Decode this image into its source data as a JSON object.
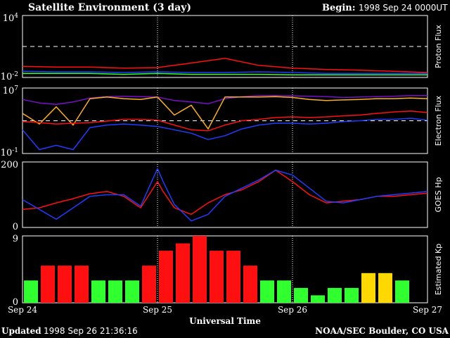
{
  "header": {
    "title": "Satellite Environment (3 day)",
    "begin_label": "Begin:",
    "begin_value": "1998 Sep 24 0000UT"
  },
  "footer": {
    "updated_label": "Updated",
    "updated_value": "1998 Sep 26 21:36:16",
    "source": "NOAA/SEC Boulder, CO USA"
  },
  "colors": {
    "background": "#000000",
    "red": "#ff1010",
    "blue": "#1f3dff",
    "green": "#30ff30",
    "orange": "#ffb020",
    "purple": "#7a10c8",
    "kp_green": "#30ff30",
    "kp_red": "#ff1010",
    "kp_yellow": "#ffd800"
  },
  "chart_data": [
    {
      "id": "proton",
      "type": "line",
      "ylabel": "Proton Flux",
      "yscale": "log",
      "ylim": [
        0.01,
        10000
      ],
      "ytick_labels": {
        "top": "10",
        "top_exp": "4",
        "bottom": "10",
        "bottom_exp": "-2"
      },
      "threshold": 10,
      "x": [
        0,
        6,
        12,
        18,
        24,
        30,
        36,
        42,
        48,
        54,
        60,
        66,
        72
      ],
      "series": [
        {
          "color": "red",
          "values": [
            0.12,
            0.1,
            0.1,
            0.08,
            0.09,
            0.25,
            0.7,
            0.15,
            0.08,
            0.06,
            0.05,
            0.04,
            0.03
          ]
        },
        {
          "color": "blue",
          "values": [
            0.04,
            0.035,
            0.035,
            0.03,
            0.035,
            0.03,
            0.03,
            0.035,
            0.03,
            0.025,
            0.025,
            0.025,
            0.025
          ]
        },
        {
          "color": "green",
          "values": [
            0.025,
            0.025,
            0.025,
            0.02,
            0.025,
            0.02,
            0.02,
            0.02,
            0.018,
            0.018,
            0.018,
            0.018,
            0.018
          ]
        }
      ]
    },
    {
      "id": "electron",
      "type": "line",
      "ylabel": "Electron Flux",
      "yscale": "log",
      "ylim": [
        0.1,
        10000000
      ],
      "ytick_labels": {
        "top": "10",
        "top_exp": "7",
        "bottom": "10",
        "bottom_exp": "-1"
      },
      "threshold": 1000,
      "x": [
        0,
        3,
        6,
        9,
        12,
        15,
        18,
        21,
        24,
        27,
        30,
        33,
        36,
        39,
        42,
        45,
        48,
        51,
        54,
        57,
        60,
        63,
        66,
        69,
        72
      ],
      "series": [
        {
          "color": "purple",
          "values": [
            400000,
            150000,
            100000,
            200000,
            600000,
            900000,
            1000000,
            900000,
            800000,
            300000,
            200000,
            120000,
            500000,
            900000,
            1200000,
            1200000,
            1100000,
            1000000,
            900000,
            700000,
            800000,
            900000,
            1000000,
            1200000,
            1200000
          ]
        },
        {
          "color": "orange",
          "values": [
            8000,
            400,
            50000,
            300,
            500000,
            800000,
            500000,
            400000,
            800000,
            5000,
            80000,
            100,
            800000,
            800000,
            800000,
            900000,
            700000,
            400000,
            300000,
            350000,
            400000,
            500000,
            500000,
            600000,
            500000
          ]
        },
        {
          "color": "red",
          "values": [
            800,
            600,
            400,
            500,
            600,
            900,
            1500,
            1500,
            1200,
            300,
            80,
            60,
            300,
            1000,
            1500,
            2500,
            3000,
            2500,
            3000,
            4000,
            5000,
            8000,
            12000,
            15000,
            10000
          ]
        },
        {
          "color": "blue",
          "values": [
            80,
            0.3,
            1,
            0.3,
            150,
            300,
            400,
            300,
            200,
            80,
            30,
            5,
            15,
            100,
            300,
            500,
            500,
            400,
            500,
            800,
            1000,
            1500,
            1500,
            2000,
            1200
          ]
        }
      ]
    },
    {
      "id": "goes_hp",
      "type": "line",
      "ylabel": "GOES Hp",
      "ylim": [
        0,
        200
      ],
      "ytick_labels": {
        "top": "200",
        "bottom": "0"
      },
      "x": [
        0,
        3,
        6,
        9,
        12,
        15,
        18,
        21,
        24,
        25,
        27,
        30,
        33,
        36,
        39,
        42,
        45,
        48,
        51,
        54,
        57,
        60,
        63,
        66,
        69,
        72
      ],
      "series": [
        {
          "color": "red",
          "values": [
            55,
            60,
            75,
            88,
            103,
            110,
            95,
            60,
            140,
            110,
            60,
            40,
            75,
            100,
            115,
            140,
            175,
            140,
            100,
            75,
            80,
            85,
            95,
            95,
            100,
            105
          ]
        },
        {
          "color": "blue",
          "values": [
            85,
            55,
            25,
            60,
            95,
            100,
            100,
            65,
            180,
            140,
            70,
            20,
            40,
            95,
            120,
            145,
            175,
            160,
            120,
            80,
            75,
            85,
            95,
            100,
            105,
            110
          ]
        }
      ]
    },
    {
      "id": "kp",
      "type": "bar",
      "ylabel": "Estimated Kp",
      "ylim": [
        0,
        9
      ],
      "ytick_labels": {
        "top": "9",
        "bottom": "0"
      },
      "values": [
        3,
        5,
        5,
        5,
        3,
        3,
        3,
        5,
        7,
        8,
        9,
        7,
        7,
        5,
        3,
        3,
        2,
        1,
        2,
        2,
        4,
        4,
        3
      ],
      "bar_colors": [
        "kp_green",
        "kp_red",
        "kp_red",
        "kp_red",
        "kp_green",
        "kp_green",
        "kp_green",
        "kp_red",
        "kp_red",
        "kp_red",
        "kp_red",
        "kp_red",
        "kp_red",
        "kp_red",
        "kp_green",
        "kp_green",
        "kp_green",
        "kp_green",
        "kp_green",
        "kp_green",
        "kp_yellow",
        "kp_yellow",
        "kp_green"
      ]
    }
  ],
  "xaxis": {
    "label": "Universal Time",
    "ticks": [
      "Sep 24",
      "Sep 25",
      "Sep 26",
      "Sep 27"
    ]
  }
}
